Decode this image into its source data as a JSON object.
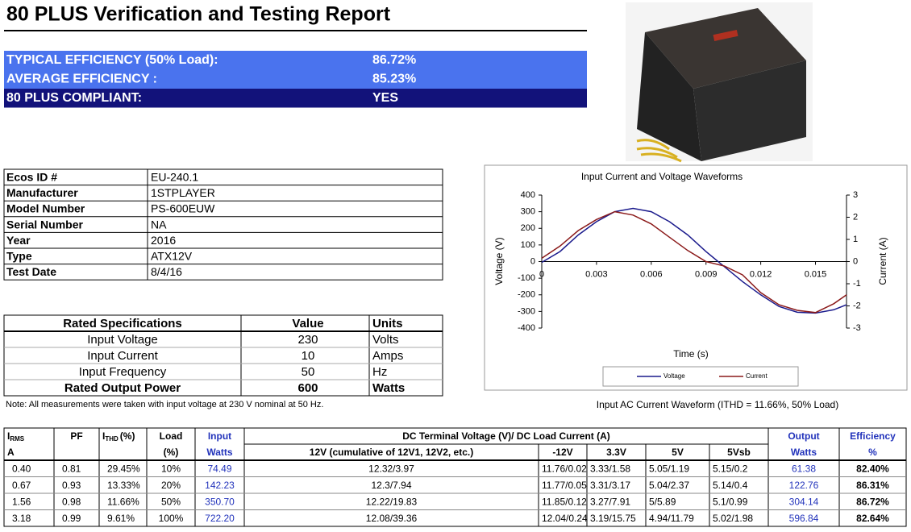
{
  "header": {
    "title": "80 PLUS Verification and Testing Report"
  },
  "summary": [
    {
      "label": "TYPICAL EFFICIENCY (50% Load):",
      "value": "86.72%"
    },
    {
      "label": "AVERAGE EFFICIENCY :",
      "value": "85.23%"
    },
    {
      "label": "80 PLUS COMPLIANT:",
      "value": "YES"
    }
  ],
  "product_info": [
    [
      "Ecos ID #",
      "EU-240.1"
    ],
    [
      "Manufacturer",
      "1STPLAYER"
    ],
    [
      "Model Number",
      "PS-600EUW"
    ],
    [
      "Serial Number",
      "NA"
    ],
    [
      "Year",
      "2016"
    ],
    [
      "Type",
      "ATX12V"
    ],
    [
      "Test Date",
      "8/4/16"
    ]
  ],
  "rated_specifications": {
    "header": [
      "Rated Specifications",
      "Value",
      "Units"
    ],
    "rows": [
      [
        "Input Voltage",
        "230",
        "Volts"
      ],
      [
        "Input Current",
        "10",
        "Amps"
      ],
      [
        "Input Frequency",
        "50",
        "Hz"
      ],
      [
        "Rated Output Power",
        "600",
        "Watts"
      ]
    ]
  },
  "note": "Note: All measurements were taken with input voltage at 230 V nominal at 50 Hz.",
  "chart_data": {
    "type": "line",
    "title": "Input Current and Voltage Waveforms",
    "x_label": "Time (s)",
    "y_label": "Voltage (V)",
    "y2_label": "Current (A)",
    "caption": "Input AC Current Waveform (ITHD = 11.66%, 50% Load)",
    "x": [
      0,
      0.001,
      0.002,
      0.003,
      0.004,
      0.005,
      0.006,
      0.007,
      0.008,
      0.009,
      0.01,
      0.011,
      0.012,
      0.013,
      0.014,
      0.015,
      0.016,
      0.0167
    ],
    "xlim": [
      0,
      0.0167
    ],
    "xticks": [
      0,
      0.003,
      0.006,
      0.009,
      0.012,
      0.015
    ],
    "ylim": [
      -400,
      400
    ],
    "yticks": [
      -400,
      -300,
      -200,
      -100,
      0,
      100,
      200,
      300,
      400
    ],
    "y2lim": [
      -3,
      3
    ],
    "y2ticks": [
      -3,
      -2,
      -1,
      0,
      1,
      2,
      3
    ],
    "legend": "bottom",
    "series": [
      {
        "name": "Voltage",
        "color": "#1a1a8c",
        "values": [
          -5,
          60,
          160,
          240,
          300,
          320,
          300,
          240,
          160,
          60,
          -30,
          -120,
          -200,
          -270,
          -305,
          -310,
          -290,
          -260
        ]
      },
      {
        "name": "Current",
        "color": "#8b1a1a",
        "axis": "y2",
        "values": [
          0.15,
          0.7,
          1.4,
          1.9,
          2.25,
          2.1,
          1.7,
          1.1,
          0.5,
          0.0,
          -0.2,
          -0.6,
          -1.4,
          -1.95,
          -2.2,
          -2.3,
          -1.9,
          -1.5
        ]
      }
    ]
  },
  "results": {
    "irms": {
      "symbol": "I",
      "subscript": "RMS",
      "unit": "A"
    },
    "pf": "PF",
    "ithd": {
      "symbol": "I",
      "subscript": "THD",
      "unit": "(%)"
    },
    "load": [
      "Load",
      "(%)"
    ],
    "input": [
      "Input",
      "Watts"
    ],
    "dc": "DC Terminal Voltage (V)/ DC Load Current (A)",
    "dc_columns": [
      "12V (cumulative of 12V1, 12V2, etc.)",
      "-12V",
      "3.3V",
      "5V",
      "5Vsb"
    ],
    "output": [
      "Output",
      "Watts"
    ],
    "efficiency": [
      "Efficiency",
      "%"
    ],
    "rows": [
      [
        "0.40",
        "0.81",
        "29.45%",
        "10%",
        "74.49",
        "12.32/3.97",
        "11.76/0.02",
        "3.33/1.58",
        "5.05/1.19",
        "5.15/0.2",
        "61.38",
        "82.40%"
      ],
      [
        "0.67",
        "0.93",
        "13.33%",
        "20%",
        "142.23",
        "12.3/7.94",
        "11.77/0.05",
        "3.31/3.17",
        "5.04/2.37",
        "5.14/0.4",
        "122.76",
        "86.31%"
      ],
      [
        "1.56",
        "0.98",
        "11.66%",
        "50%",
        "350.70",
        "12.22/19.83",
        "11.85/0.12",
        "3.27/7.91",
        "5/5.89",
        "5.1/0.99",
        "304.14",
        "86.72%"
      ],
      [
        "3.18",
        "0.99",
        "9.61%",
        "100%",
        "722.20",
        "12.08/39.36",
        "12.04/0.24",
        "3.19/15.75",
        "4.94/11.79",
        "5.02/1.98",
        "596.84",
        "82.64%"
      ]
    ]
  }
}
